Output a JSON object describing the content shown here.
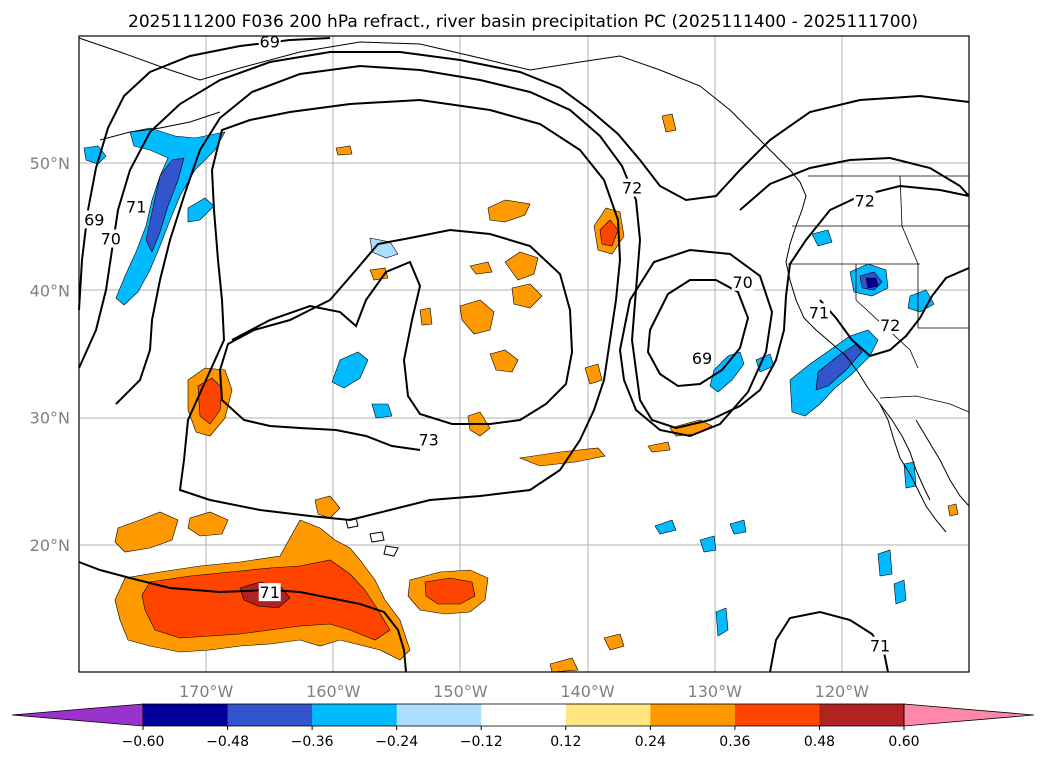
{
  "title": "2025111200 F036 200 hPa refract., river basin precipitation PC (2025111400 - 2025111700)",
  "map": {
    "projection": "PlateCarree",
    "lon_range": [
      -180,
      -110
    ],
    "lat_range": [
      10,
      60
    ],
    "gridlines": true,
    "lon_ticks": [
      {
        "lon": -170,
        "label": "170°W"
      },
      {
        "lon": -160,
        "label": "160°W"
      },
      {
        "lon": -150,
        "label": "150°W"
      },
      {
        "lon": -140,
        "label": "140°W"
      },
      {
        "lon": -130,
        "label": "130°W"
      },
      {
        "lon": -120,
        "label": "120°W"
      }
    ],
    "lat_ticks": [
      {
        "lat": 20,
        "label": "20°N"
      },
      {
        "lat": 30,
        "label": "30°N"
      },
      {
        "lat": 40,
        "label": "40°N"
      },
      {
        "lat": 50,
        "label": "50°N"
      }
    ],
    "contour_labels": [
      {
        "text": "69",
        "lon": -165.0,
        "lat": 59.5
      },
      {
        "text": "69",
        "lon": -178.8,
        "lat": 45.5
      },
      {
        "text": "70",
        "lon": -177.5,
        "lat": 44.0
      },
      {
        "text": "71",
        "lon": -175.5,
        "lat": 46.5
      },
      {
        "text": "72",
        "lon": -136.5,
        "lat": 48.0
      },
      {
        "text": "70",
        "lon": -127.8,
        "lat": 40.6
      },
      {
        "text": "69",
        "lon": -131.0,
        "lat": 34.6
      },
      {
        "text": "71",
        "lon": -121.8,
        "lat": 38.2
      },
      {
        "text": "72",
        "lon": -116.2,
        "lat": 37.2
      },
      {
        "text": "72",
        "lon": -118.2,
        "lat": 47.0
      },
      {
        "text": "73",
        "lon": -152.5,
        "lat": 28.2
      },
      {
        "text": "71",
        "lon": -165.0,
        "lat": 16.2
      },
      {
        "text": "71",
        "lon": -117.0,
        "lat": 12.0
      }
    ]
  },
  "colorbar": {
    "extend": "both",
    "levels": [
      -0.6,
      -0.48,
      -0.36,
      -0.24,
      -0.12,
      0.12,
      0.24,
      0.36,
      0.48,
      0.6
    ],
    "tick_labels": [
      "−0.60",
      "−0.48",
      "−0.36",
      "−0.24",
      "−0.12",
      "0.12",
      "0.24",
      "0.36",
      "0.48",
      "0.60"
    ],
    "colors": [
      "#9933cc",
      "#000099",
      "#3355cc",
      "#00bbff",
      "#aaddff",
      "#ffffff",
      "#ffe680",
      "#ff9900",
      "#ff4400",
      "#b22222",
      "#ff88aa"
    ]
  }
}
